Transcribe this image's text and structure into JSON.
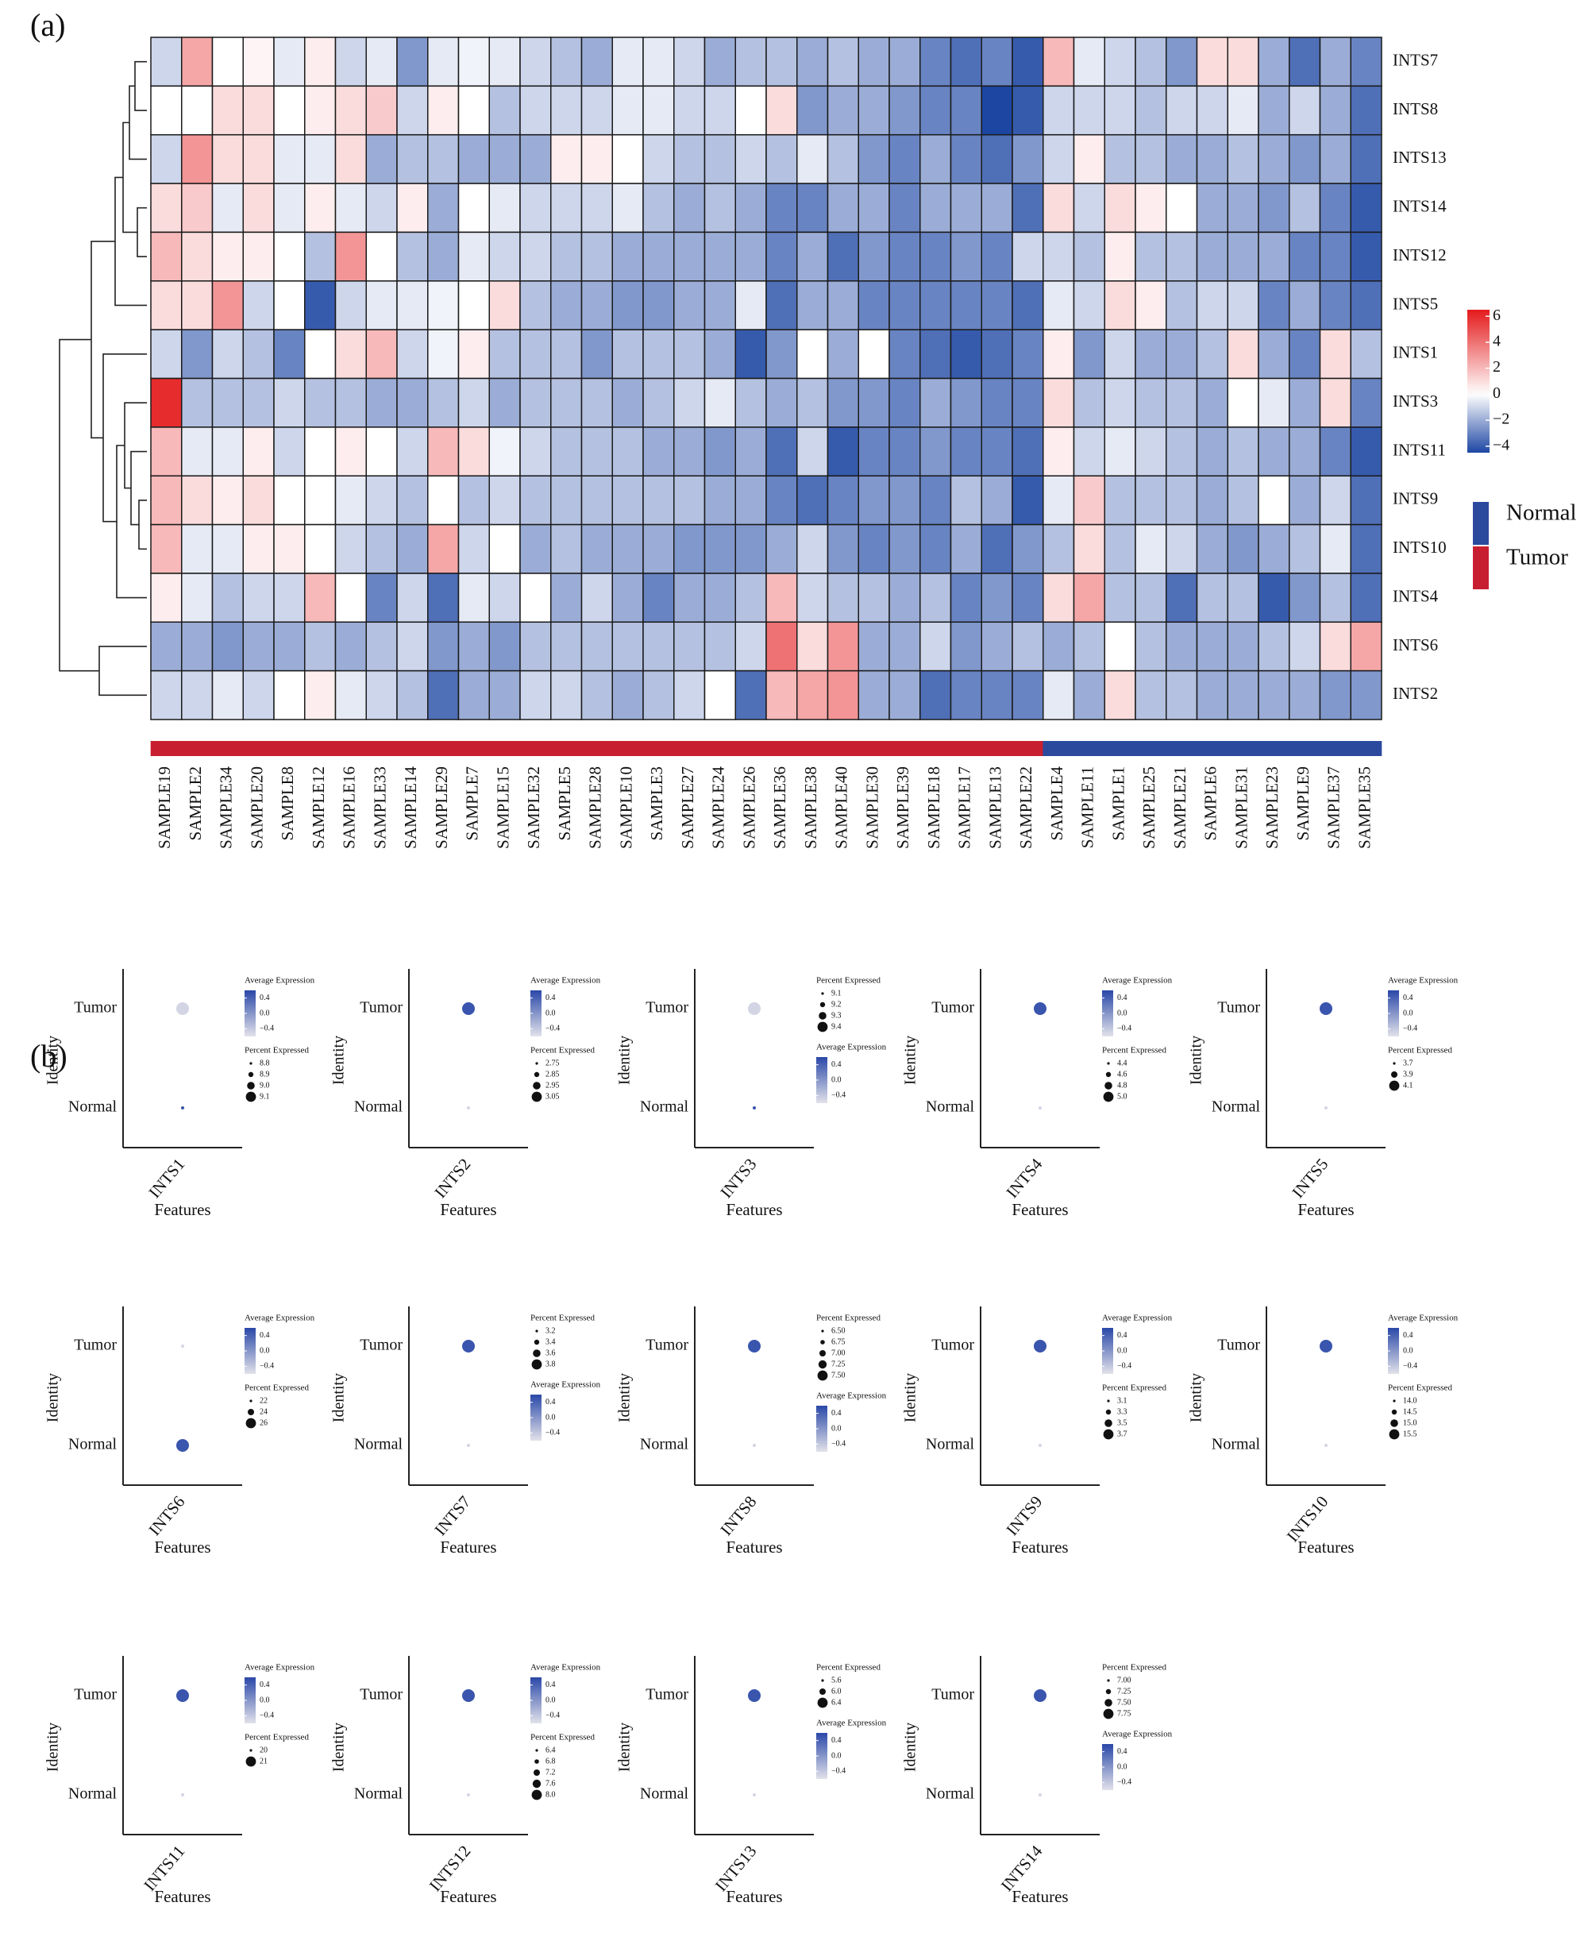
{
  "panel_a": {
    "label": "(a)",
    "rows": [
      "INTS7",
      "INTS8",
      "INTS13",
      "INTS14",
      "INTS12",
      "INTS5",
      "INTS1",
      "INTS3",
      "INTS11",
      "INTS9",
      "INTS10",
      "INTS4",
      "INTS6",
      "INTS2"
    ],
    "columns": [
      "SAMPLE19",
      "SAMPLE2",
      "SAMPLE34",
      "SAMPLE20",
      "SAMPLE8",
      "SAMPLE12",
      "SAMPLE16",
      "SAMPLE33",
      "SAMPLE14",
      "SAMPLE29",
      "SAMPLE7",
      "SAMPLE15",
      "SAMPLE32",
      "SAMPLE5",
      "SAMPLE28",
      "SAMPLE10",
      "SAMPLE3",
      "SAMPLE27",
      "SAMPLE24",
      "SAMPLE26",
      "SAMPLE36",
      "SAMPLE38",
      "SAMPLE40",
      "SAMPLE30",
      "SAMPLE39",
      "SAMPLE18",
      "SAMPLE17",
      "SAMPLE13",
      "SAMPLE22",
      "SAMPLE4",
      "SAMPLE11",
      "SAMPLE1",
      "SAMPLE25",
      "SAMPLE21",
      "SAMPLE6",
      "SAMPLE31",
      "SAMPLE23",
      "SAMPLE9",
      "SAMPLE37",
      "SAMPLE35"
    ],
    "column_groups": [
      "Tumor",
      "Tumor",
      "Tumor",
      "Tumor",
      "Tumor",
      "Tumor",
      "Tumor",
      "Tumor",
      "Tumor",
      "Tumor",
      "Tumor",
      "Tumor",
      "Tumor",
      "Tumor",
      "Tumor",
      "Tumor",
      "Tumor",
      "Tumor",
      "Tumor",
      "Tumor",
      "Tumor",
      "Tumor",
      "Tumor",
      "Tumor",
      "Tumor",
      "Tumor",
      "Tumor",
      "Tumor",
      "Tumor",
      "Normal",
      "Normal",
      "Normal",
      "Normal",
      "Normal",
      "Normal",
      "Normal",
      "Normal",
      "Normal",
      "Normal",
      "Normal"
    ],
    "values": [
      [
        -1,
        2.5,
        0,
        0.3,
        -0.5,
        0.5,
        -1,
        -0.5,
        -2.5,
        -0.5,
        -0.3,
        -0.5,
        -1,
        -1.5,
        -2,
        -0.5,
        -0.5,
        -1,
        -2,
        -1.5,
        -1.5,
        -2,
        -1.5,
        -2,
        -2,
        -3,
        -3.5,
        -3,
        -4,
        2,
        -0.5,
        -1,
        -1.5,
        -2.5,
        1,
        1,
        -2,
        -3.5,
        -2,
        -3
      ],
      [
        0,
        0,
        1,
        1,
        0,
        0.5,
        1,
        1.5,
        -1,
        0.5,
        0,
        -1.5,
        -1,
        -1,
        -1,
        -0.5,
        -0.5,
        -1,
        -1,
        0,
        1,
        -2.5,
        -2,
        -2,
        -2.5,
        -3,
        -3,
        -4.5,
        -4,
        -1,
        -1,
        -1,
        -1.5,
        -1,
        -1,
        -0.5,
        -2,
        -1,
        -2,
        -3.5
      ],
      [
        -1,
        3,
        1,
        1,
        -0.5,
        -0.5,
        1,
        -2,
        -1.5,
        -1.5,
        -2,
        -2,
        -2,
        0.5,
        0.5,
        0,
        -1,
        -1.5,
        -1.5,
        -1,
        -1.5,
        -0.5,
        -1.5,
        -2.5,
        -3,
        -2,
        -3,
        -3.5,
        -2.5,
        -1,
        0.5,
        -1.5,
        -1.5,
        -2,
        -2,
        -1.5,
        -2,
        -2.5,
        -2,
        -3.5
      ],
      [
        1,
        1.5,
        -0.5,
        1,
        -0.5,
        0.5,
        -0.5,
        -1,
        0.5,
        -2,
        0,
        -0.5,
        -1,
        -1,
        -1,
        -0.5,
        -1.5,
        -2,
        -1.5,
        -2,
        -3,
        -3,
        -2,
        -2,
        -3,
        -2,
        -2,
        -2,
        -3.5,
        1,
        -1,
        1,
        0.5,
        0,
        -2,
        -2,
        -2.5,
        -1.5,
        -3,
        -4
      ],
      [
        2,
        1,
        0.5,
        0.5,
        0,
        -1.5,
        3,
        0,
        -1.5,
        -2,
        -0.5,
        -1,
        -1,
        -1.5,
        -1.5,
        -2,
        -2,
        -2,
        -2,
        -2,
        -3,
        -2,
        -3.5,
        -2.5,
        -3,
        -3,
        -2.5,
        -3,
        -1,
        -1,
        -1.5,
        0.5,
        -1.5,
        -1.5,
        -2,
        -2,
        -2,
        -3,
        -3,
        -4
      ],
      [
        1,
        1,
        3,
        -1,
        0,
        -4,
        -1,
        -0.5,
        -0.5,
        -0.3,
        0,
        1,
        -1.5,
        -2,
        -2,
        -2.5,
        -2.5,
        -2,
        -2,
        -0.5,
        -3.5,
        -2,
        -2,
        -3,
        -3,
        -3,
        -3,
        -3,
        -3.5,
        -0.5,
        -1,
        1,
        0.5,
        -1.5,
        -1,
        -1,
        -3,
        -2,
        -3,
        -3.5
      ],
      [
        -1,
        -2.5,
        -1,
        -1.5,
        -3,
        0,
        1,
        2,
        -1,
        -0.3,
        0.5,
        -1.5,
        -1.5,
        -1.5,
        -2.5,
        -1.5,
        -1.5,
        -1.5,
        -2,
        -4,
        -2.5,
        0,
        -2,
        0,
        -3,
        -3.5,
        -4,
        -3.5,
        -3,
        0.5,
        -2.5,
        -1,
        -2,
        -2,
        -1.5,
        1,
        -2,
        -3,
        1,
        -1.5
      ],
      [
        6,
        -1.5,
        -1.5,
        -1.5,
        -1,
        -1.5,
        -1.5,
        -2,
        -2,
        -1.5,
        -1,
        -2,
        -1.5,
        -1.5,
        -1.5,
        -2,
        -1.5,
        -1,
        -0.5,
        -1.5,
        -2,
        -1.5,
        -2.5,
        -2.5,
        -3,
        -2,
        -2.5,
        -3,
        -3,
        1,
        -1.5,
        -1,
        -1.5,
        -1.5,
        -2,
        0,
        -0.5,
        -2,
        1,
        -3
      ],
      [
        2,
        -0.5,
        -0.5,
        0.5,
        -1,
        0,
        0.5,
        0,
        -1,
        2,
        1,
        -0.3,
        -1,
        -1.5,
        -1.5,
        -1.5,
        -2,
        -2,
        -2.5,
        -2,
        -3.5,
        -1,
        -4,
        -3,
        -3,
        -2.5,
        -3,
        -3,
        -3.5,
        0.5,
        -1,
        -0.5,
        -1,
        -1.5,
        -2,
        -1.5,
        -2,
        -2,
        -3,
        -4
      ],
      [
        2,
        1,
        0.5,
        1,
        0,
        0,
        -0.5,
        -1,
        -1.5,
        0,
        -1.5,
        -1,
        -1.5,
        -1.5,
        -1.5,
        -1.5,
        -1.5,
        -1.5,
        -2,
        -2,
        -3,
        -3.5,
        -3,
        -2.5,
        -2.5,
        -3,
        -1.5,
        -2,
        -4,
        -0.5,
        1.5,
        -1.5,
        -1.5,
        -1.5,
        -2,
        -1.5,
        0,
        -2,
        -1,
        -3.5
      ],
      [
        2,
        -0.5,
        -0.5,
        0.5,
        0.5,
        0,
        -1,
        -1.5,
        -2,
        2.5,
        -1,
        0,
        -2,
        -1.5,
        -2,
        -2,
        -2,
        -2.5,
        -2.5,
        -2.5,
        -2,
        -1,
        -2.5,
        -3,
        -2.5,
        -3,
        -2,
        -3.5,
        -2.5,
        -1.5,
        1,
        -1.5,
        -0.5,
        -1,
        -2,
        -2.5,
        -2,
        -1.5,
        -0.5,
        -3.5
      ],
      [
        0.5,
        -0.5,
        -1.5,
        -1,
        -1,
        2,
        0,
        -3,
        -1,
        -3.5,
        -0.5,
        -1,
        0,
        -2,
        -1,
        -2,
        -3,
        -2,
        -2,
        -1.5,
        2,
        -1,
        -1.5,
        -1.5,
        -2,
        -1.5,
        -3,
        -2.5,
        -3,
        1,
        2.5,
        -1.5,
        -1.5,
        -3.5,
        -1.5,
        -1.5,
        -4,
        -2.5,
        -1.5,
        -3.5
      ],
      [
        -2,
        -2,
        -2.5,
        -2,
        -2,
        -1.5,
        -2,
        -1.5,
        -1,
        -2.5,
        -2,
        -2.5,
        -1.5,
        -1.5,
        -1.5,
        -1.5,
        -1.5,
        -1.5,
        -1.5,
        -1,
        4,
        1,
        3,
        -2,
        -2,
        -1,
        -2.5,
        -2,
        -1.5,
        -2,
        -1.5,
        0,
        -1.5,
        -2,
        -2,
        -2,
        -1.5,
        -1,
        1,
        2.5
      ],
      [
        -1,
        -1,
        -0.5,
        -1,
        0,
        0.5,
        -0.5,
        -1,
        -1.5,
        -3.5,
        -2,
        -2,
        -1,
        -1,
        -1.5,
        -2,
        -1.5,
        -1,
        0,
        -3.5,
        2,
        2.5,
        3,
        -2,
        -2,
        -3.5,
        -3,
        -3,
        -3,
        -0.5,
        -2,
        1,
        -1.5,
        -1.5,
        -2,
        -2,
        -2,
        -2,
        -2.5,
        -2.5
      ]
    ],
    "color_lim": [
      -4.5,
      6.5
    ],
    "color_ticks": [
      6,
      4,
      2,
      0,
      {
        "value": -2,
        "label": "−2"
      },
      {
        "value": -4,
        "label": "−4"
      }
    ],
    "colors": {
      "high": "#e41a1c",
      "mid": "#ffffff",
      "low": "#1d46a3"
    },
    "groups": [
      {
        "name": "Normal",
        "color": "#2b4a9e"
      },
      {
        "name": "Tumor",
        "color": "#c81f30"
      }
    ]
  },
  "panel_b": {
    "label": "(b)",
    "identities": [
      "Tumor",
      "Normal"
    ],
    "x_label": "Features",
    "y_label": "Identity",
    "avg_title": "Average Expression",
    "pct_title": "Percent Expressed",
    "avg_lim": [
      -0.6,
      0.6
    ],
    "avg_ticks": [
      0.4,
      {
        "value": 0,
        "label": "0.0"
      },
      {
        "value": -0.4,
        "label": "−0.4"
      }
    ],
    "avg_colors": [
      "#e2e2ea",
      "#2a48a8"
    ],
    "panels": [
      {
        "feature": "INTS1",
        "percent_expressed": [
          9.1,
          8.8
        ],
        "average_expression": [
          -0.5,
          0.5
        ],
        "percent_ticks": [
          8.8,
          8.9,
          {
            "value": 9,
            "label": "9.0"
          },
          9.1
        ],
        "percent_first": false
      },
      {
        "feature": "INTS2",
        "percent_expressed": [
          3.05,
          2.75
        ],
        "average_expression": [
          0.5,
          -0.5
        ],
        "percent_ticks": [
          2.75,
          2.85,
          2.95,
          3.05
        ],
        "percent_first": false
      },
      {
        "feature": "INTS3",
        "percent_expressed": [
          9.4,
          9.1
        ],
        "average_expression": [
          -0.5,
          0.5
        ],
        "percent_ticks": [
          9.1,
          9.2,
          9.3,
          9.4
        ],
        "percent_first": true
      },
      {
        "feature": "INTS4",
        "percent_expressed": [
          5,
          4.4
        ],
        "average_expression": [
          0.5,
          -0.5
        ],
        "percent_ticks": [
          4.4,
          4.6,
          4.8,
          {
            "value": 5,
            "label": "5.0"
          }
        ],
        "percent_first": false
      },
      {
        "feature": "INTS5",
        "percent_expressed": [
          4.1,
          3.7
        ],
        "average_expression": [
          0.5,
          -0.5
        ],
        "percent_ticks": [
          3.7,
          3.9,
          4.1
        ],
        "percent_first": false
      },
      {
        "feature": "INTS6",
        "percent_expressed": [
          22,
          26
        ],
        "average_expression": [
          -0.5,
          0.5
        ],
        "percent_ticks": [
          22,
          24,
          26
        ],
        "percent_first": false
      },
      {
        "feature": "INTS7",
        "percent_expressed": [
          3.8,
          3.2
        ],
        "average_expression": [
          0.5,
          -0.5
        ],
        "percent_ticks": [
          3.2,
          3.4,
          3.6,
          3.8
        ],
        "percent_first": true
      },
      {
        "feature": "INTS8",
        "percent_expressed": [
          7.5,
          6.5
        ],
        "average_expression": [
          0.5,
          -0.5
        ],
        "percent_ticks": [
          {
            "value": 6.5,
            "label": "6.50"
          },
          6.75,
          {
            "value": 7,
            "label": "7.00"
          },
          7.25,
          {
            "value": 7.5,
            "label": "7.50"
          }
        ],
        "percent_first": true
      },
      {
        "feature": "INTS9",
        "percent_expressed": [
          3.7,
          3.1
        ],
        "average_expression": [
          0.5,
          -0.5
        ],
        "percent_ticks": [
          3.1,
          3.3,
          3.5,
          3.7
        ],
        "percent_first": false
      },
      {
        "feature": "INTS10",
        "percent_expressed": [
          15.5,
          14
        ],
        "average_expression": [
          0.5,
          -0.5
        ],
        "percent_ticks": [
          {
            "value": 14,
            "label": "14.0"
          },
          14.5,
          {
            "value": 15,
            "label": "15.0"
          },
          15.5
        ],
        "percent_first": false
      },
      {
        "feature": "INTS11",
        "percent_expressed": [
          21,
          20
        ],
        "average_expression": [
          0.5,
          -0.5
        ],
        "percent_ticks": [
          20,
          21
        ],
        "percent_first": false
      },
      {
        "feature": "INTS12",
        "percent_expressed": [
          8,
          6.4
        ],
        "average_expression": [
          0.5,
          -0.5
        ],
        "percent_ticks": [
          6.4,
          6.8,
          7.2,
          7.6,
          {
            "value": 8,
            "label": "8.0"
          }
        ],
        "percent_first": false
      },
      {
        "feature": "INTS13",
        "percent_expressed": [
          6.4,
          5.6
        ],
        "average_expression": [
          0.5,
          -0.5
        ],
        "percent_ticks": [
          5.6,
          {
            "value": 6,
            "label": "6.0"
          },
          6.4
        ],
        "percent_first": true
      },
      {
        "feature": "INTS14",
        "percent_expressed": [
          7.75,
          7
        ],
        "average_expression": [
          0.5,
          -0.5
        ],
        "percent_ticks": [
          {
            "value": 7,
            "label": "7.00"
          },
          7.25,
          {
            "value": 7.5,
            "label": "7.50"
          },
          7.75
        ],
        "percent_first": true
      }
    ]
  }
}
